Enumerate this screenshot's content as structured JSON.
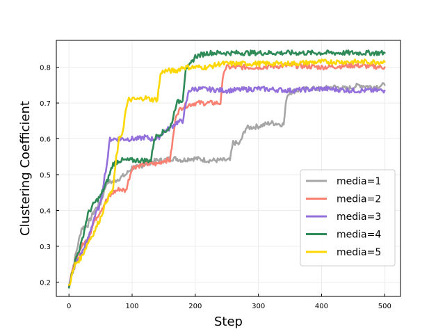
{
  "chart_data": {
    "type": "line",
    "title": "",
    "xlabel": "Step",
    "ylabel": "Clustering Coefficient",
    "xlim": [
      -20,
      525
    ],
    "ylim": [
      0.16,
      0.875
    ],
    "xticks": [
      0,
      100,
      200,
      300,
      400,
      500
    ],
    "yticks": [
      0.2,
      0.3,
      0.4,
      0.5,
      0.6,
      0.7,
      0.8
    ],
    "grid": true,
    "legend_position": "lower right",
    "series": [
      {
        "name": "media=1",
        "color": "#a6a6a6",
        "x": [
          0,
          10,
          20,
          30,
          40,
          50,
          60,
          70,
          80,
          90,
          100,
          110,
          120,
          130,
          140,
          150,
          160,
          170,
          180,
          190,
          200,
          220,
          240,
          255,
          260,
          270,
          280,
          300,
          320,
          340,
          345,
          350,
          360,
          380,
          400,
          420,
          440,
          460,
          480,
          500
        ],
        "y": [
          0.19,
          0.27,
          0.35,
          0.36,
          0.4,
          0.42,
          0.48,
          0.48,
          0.49,
          0.5,
          0.52,
          0.52,
          0.53,
          0.535,
          0.54,
          0.54,
          0.545,
          0.545,
          0.54,
          0.545,
          0.545,
          0.54,
          0.54,
          0.54,
          0.59,
          0.585,
          0.63,
          0.635,
          0.645,
          0.64,
          0.72,
          0.73,
          0.735,
          0.74,
          0.74,
          0.745,
          0.74,
          0.75,
          0.745,
          0.75
        ]
      },
      {
        "name": "media=2",
        "color": "#fa8072",
        "x": [
          0,
          10,
          20,
          30,
          40,
          50,
          60,
          70,
          80,
          90,
          100,
          110,
          120,
          130,
          140,
          150,
          160,
          170,
          180,
          190,
          200,
          220,
          240,
          245,
          250,
          270,
          300,
          350,
          400,
          450,
          500
        ],
        "y": [
          0.19,
          0.26,
          0.3,
          0.32,
          0.37,
          0.4,
          0.43,
          0.45,
          0.46,
          0.455,
          0.52,
          0.525,
          0.53,
          0.53,
          0.53,
          0.54,
          0.54,
          0.67,
          0.69,
          0.695,
          0.7,
          0.7,
          0.7,
          0.79,
          0.8,
          0.8,
          0.8,
          0.805,
          0.8,
          0.805,
          0.8
        ]
      },
      {
        "name": "media=3",
        "color": "#9370db",
        "x": [
          0,
          10,
          20,
          30,
          40,
          50,
          55,
          60,
          65,
          70,
          80,
          90,
          100,
          110,
          120,
          130,
          140,
          150,
          160,
          170,
          180,
          190,
          200,
          250,
          300,
          350,
          400,
          450,
          500
        ],
        "y": [
          0.19,
          0.25,
          0.28,
          0.32,
          0.38,
          0.42,
          0.48,
          0.53,
          0.6,
          0.6,
          0.6,
          0.6,
          0.6,
          0.6,
          0.605,
          0.6,
          0.6,
          0.62,
          0.63,
          0.645,
          0.65,
          0.735,
          0.74,
          0.735,
          0.74,
          0.735,
          0.74,
          0.735,
          0.735
        ]
      },
      {
        "name": "media=4",
        "color": "#2e8b57",
        "x": [
          0,
          10,
          20,
          30,
          40,
          50,
          60,
          70,
          80,
          90,
          100,
          110,
          120,
          130,
          135,
          140,
          150,
          160,
          165,
          170,
          180,
          185,
          190,
          200,
          220,
          250,
          300,
          350,
          400,
          450,
          500
        ],
        "y": [
          0.19,
          0.26,
          0.31,
          0.39,
          0.42,
          0.44,
          0.48,
          0.53,
          0.54,
          0.54,
          0.54,
          0.54,
          0.54,
          0.54,
          0.6,
          0.61,
          0.62,
          0.63,
          0.66,
          0.7,
          0.71,
          0.8,
          0.8,
          0.83,
          0.84,
          0.84,
          0.84,
          0.84,
          0.84,
          0.84,
          0.84
        ]
      },
      {
        "name": "media=5",
        "color": "#ffd700",
        "x": [
          0,
          10,
          20,
          30,
          40,
          50,
          60,
          70,
          75,
          80,
          85,
          90,
          95,
          100,
          110,
          120,
          130,
          140,
          145,
          150,
          160,
          170,
          180,
          190,
          200,
          220,
          240,
          250,
          300,
          350,
          400,
          450,
          500
        ],
        "y": [
          0.19,
          0.25,
          0.27,
          0.31,
          0.34,
          0.38,
          0.43,
          0.46,
          0.55,
          0.6,
          0.62,
          0.68,
          0.71,
          0.71,
          0.71,
          0.715,
          0.71,
          0.71,
          0.78,
          0.79,
          0.79,
          0.79,
          0.8,
          0.8,
          0.8,
          0.8,
          0.81,
          0.81,
          0.81,
          0.81,
          0.815,
          0.815,
          0.815
        ]
      }
    ]
  }
}
